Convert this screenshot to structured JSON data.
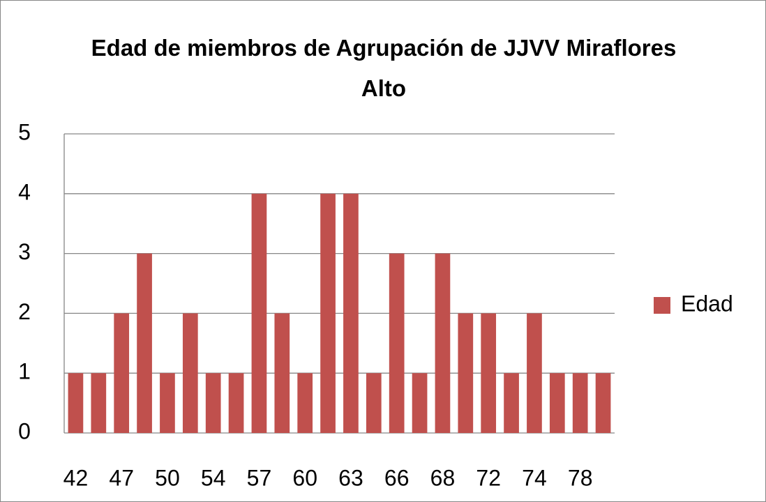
{
  "chart_data": {
    "type": "bar",
    "title": "Edad de miembros de Agrupación de JJVV Miraflores Alto",
    "categories": [
      "42",
      null,
      "47",
      null,
      "50",
      null,
      "54",
      null,
      "57",
      null,
      "60",
      null,
      "63",
      null,
      "66",
      null,
      "68",
      null,
      "72",
      null,
      "74",
      null,
      "78",
      null
    ],
    "series": [
      {
        "name": "Edad",
        "color": "#c0504d",
        "values": [
          1,
          1,
          2,
          3,
          1,
          2,
          1,
          1,
          4,
          2,
          1,
          4,
          4,
          1,
          3,
          1,
          3,
          2,
          2,
          1,
          2,
          1,
          1,
          1
        ]
      }
    ],
    "ylim": [
      0,
      5
    ],
    "yticks": [
      0,
      1,
      2,
      3,
      4,
      5
    ],
    "grid": true,
    "legend": "right"
  }
}
